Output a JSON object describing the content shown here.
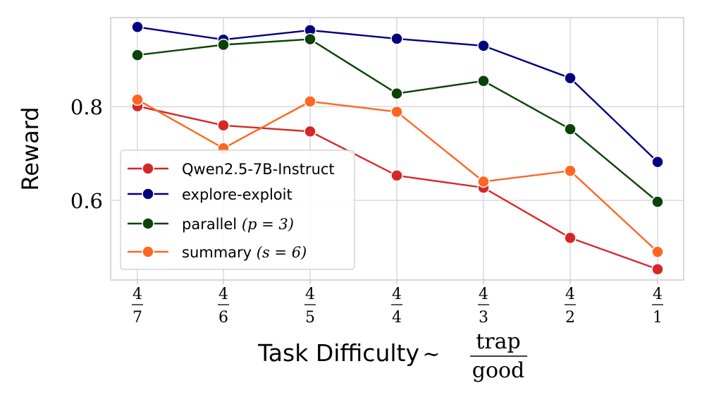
{
  "chart_data": {
    "type": "line",
    "xlabel_prefix": "Task Difficulty",
    "xlabel_tilde": "∼",
    "xlabel_frac": {
      "num": "trap",
      "den": "good"
    },
    "ylabel": "Reward",
    "ylim": [
      0.43,
      0.99
    ],
    "yticks": [
      0.6,
      0.8
    ],
    "ytick_labels": [
      "0.6",
      "0.8"
    ],
    "grid": true,
    "legend_position": "lower-left",
    "categories": [
      {
        "num": "4",
        "den": "7"
      },
      {
        "num": "4",
        "den": "6"
      },
      {
        "num": "4",
        "den": "5"
      },
      {
        "num": "4",
        "den": "4"
      },
      {
        "num": "4",
        "den": "3"
      },
      {
        "num": "4",
        "den": "2"
      },
      {
        "num": "4",
        "den": "1"
      }
    ],
    "series": [
      {
        "name": "Qwen2.5-7B-Instruct",
        "name_math": "",
        "color": "#d62728",
        "values": [
          0.801,
          0.76,
          0.747,
          0.653,
          0.627,
          0.52,
          0.453
        ]
      },
      {
        "name": "explore-exploit",
        "name_math": "",
        "color": "#00007f",
        "values": [
          0.97,
          0.943,
          0.963,
          0.945,
          0.93,
          0.861,
          0.682
        ]
      },
      {
        "name": "parallel ",
        "name_math": "(p = 3)",
        "color": "#0b4306",
        "values": [
          0.91,
          0.932,
          0.944,
          0.828,
          0.855,
          0.752,
          0.597
        ]
      },
      {
        "name": "summary ",
        "name_math": "(s = 6)",
        "color": "#ff6621",
        "values": [
          0.815,
          0.711,
          0.811,
          0.789,
          0.64,
          0.663,
          0.49
        ]
      }
    ]
  }
}
